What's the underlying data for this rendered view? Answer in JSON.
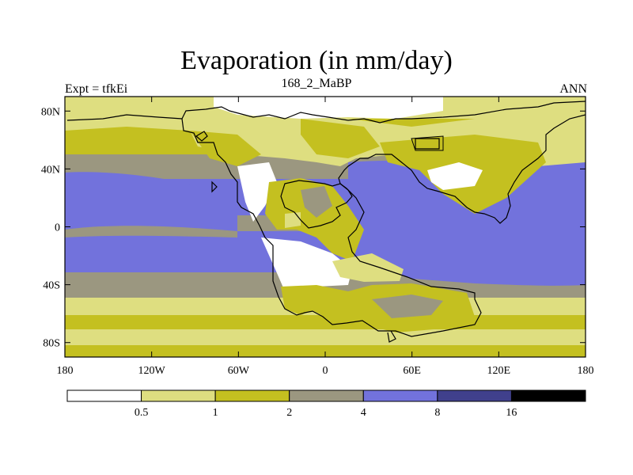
{
  "title": "Evaporation (in mm/day)",
  "subtitle_left": "Expt = tfkEi",
  "subtitle_center": "168_2_MaBP",
  "subtitle_right": "ANN",
  "map": {
    "lon_range": [
      -180,
      180
    ],
    "lat_range": [
      -90,
      90
    ],
    "y_ticks": [
      {
        "lat": 80,
        "label": "80N"
      },
      {
        "lat": 40,
        "label": "40N"
      },
      {
        "lat": 0,
        "label": "0"
      },
      {
        "lat": -40,
        "label": "40S"
      },
      {
        "lat": -80,
        "label": "80S"
      }
    ],
    "x_ticks": [
      {
        "lon": -180,
        "label": "180"
      },
      {
        "lon": -120,
        "label": "120W"
      },
      {
        "lon": -60,
        "label": "60W"
      },
      {
        "lon": 0,
        "label": "0"
      },
      {
        "lon": 60,
        "label": "60E"
      },
      {
        "lon": 120,
        "label": "120E"
      },
      {
        "lon": 180,
        "label": "180"
      }
    ]
  },
  "colorbar": {
    "colors": [
      "#ffffff",
      "#dede80",
      "#c4c020",
      "#9b9780",
      "#7272dc",
      "#40408c",
      "#000000"
    ],
    "levels": [
      "0.5",
      "1",
      "2",
      "4",
      "8",
      "16"
    ]
  }
}
